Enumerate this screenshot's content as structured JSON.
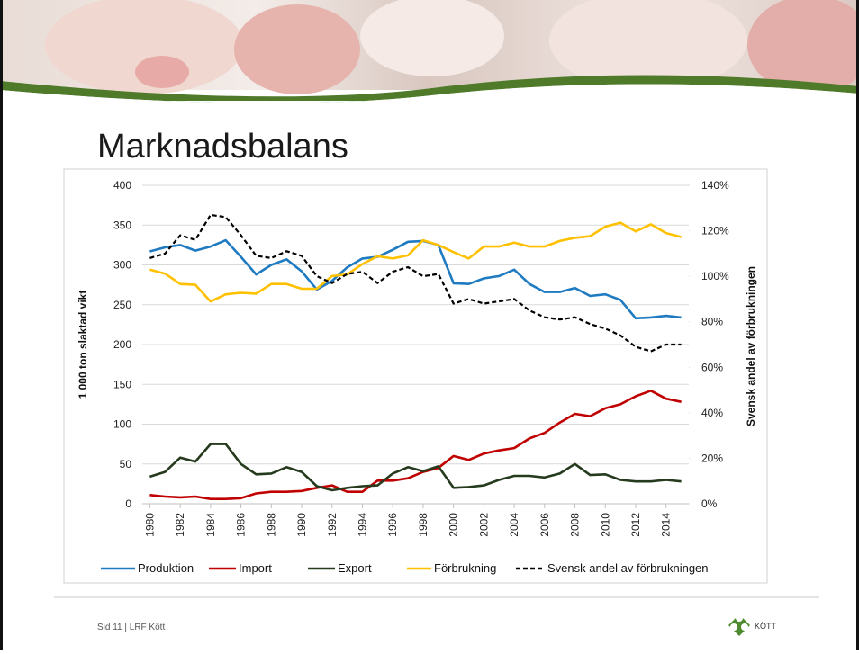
{
  "slide": {
    "title": "Marknadsbalans",
    "footer": "Sid 11 | LRF Kött",
    "logo_text": "KÖTT"
  },
  "chart_data": {
    "type": "line",
    "y_label": "1 000 ton slaktad vikt",
    "y2_label": "Svensk andel av förbrukningen",
    "x": [
      1980,
      1981,
      1982,
      1983,
      1984,
      1985,
      1986,
      1987,
      1988,
      1989,
      1990,
      1991,
      1992,
      1993,
      1994,
      1995,
      1996,
      1997,
      1998,
      1999,
      2000,
      2001,
      2002,
      2003,
      2004,
      2005,
      2006,
      2007,
      2008,
      2009,
      2010,
      2011,
      2012,
      2013,
      2014,
      2015
    ],
    "xlim": [
      1979.5,
      2015.5
    ],
    "xticks": [
      1980,
      1982,
      1984,
      1986,
      1988,
      1990,
      1992,
      1994,
      1996,
      1998,
      2000,
      2002,
      2004,
      2006,
      2008,
      2010,
      2012,
      2014
    ],
    "ylim": [
      0,
      400
    ],
    "yticks": [
      0,
      50,
      100,
      150,
      200,
      250,
      300,
      350,
      400
    ],
    "y2lim": [
      0,
      140
    ],
    "y2ticks": [
      {
        "value": 0,
        "label": "0%"
      },
      {
        "value": 20,
        "label": "20%"
      },
      {
        "value": 40,
        "label": "40%"
      },
      {
        "value": 60,
        "label": "60%"
      },
      {
        "value": 80,
        "label": "80%"
      },
      {
        "value": 100,
        "label": "100%"
      },
      {
        "value": 120,
        "label": "120%"
      },
      {
        "value": 140,
        "label": "140%"
      }
    ],
    "grid": true,
    "legend": "bottom",
    "series": [
      {
        "name": "Produktion",
        "color": "#1f7bc1",
        "values": [
          317,
          322,
          325,
          318,
          323,
          331,
          310,
          288,
          300,
          307,
          292,
          269,
          280,
          297,
          308,
          310,
          319,
          329,
          330,
          325,
          277,
          276,
          283,
          286,
          294,
          276,
          266,
          266,
          271,
          261,
          263,
          256,
          233,
          234,
          236,
          234
        ]
      },
      {
        "name": "Import",
        "color": "#c00000",
        "values": [
          11,
          9,
          8,
          9,
          6,
          6,
          7,
          13,
          15,
          15,
          16,
          20,
          23,
          15,
          15,
          29,
          29,
          32,
          40,
          45,
          60,
          55,
          63,
          67,
          70,
          82,
          89,
          102,
          113,
          110,
          120,
          125,
          135,
          142,
          132,
          128
        ]
      },
      {
        "name": "Export",
        "color": "#263a1e",
        "values": [
          34,
          40,
          58,
          53,
          75,
          75,
          50,
          37,
          38,
          46,
          40,
          22,
          17,
          20,
          22,
          23,
          38,
          46,
          41,
          47,
          20,
          21,
          23,
          30,
          35,
          35,
          33,
          38,
          50,
          36,
          37,
          30,
          28,
          28,
          30,
          28
        ]
      },
      {
        "name": "Förbrukning",
        "color": "#ffc000",
        "values": [
          294,
          289,
          276,
          275,
          254,
          263,
          265,
          264,
          276,
          276,
          270,
          270,
          286,
          288,
          301,
          311,
          308,
          312,
          331,
          325,
          316,
          308,
          323,
          323,
          328,
          323,
          323,
          330,
          334,
          336,
          348,
          353,
          342,
          351,
          340,
          335
        ]
      },
      {
        "name": "Svensk andel av förbrukningen",
        "color": "#000000",
        "dashed": true,
        "axis": "y2",
        "values": [
          108,
          110,
          118,
          116,
          127,
          126,
          118,
          109,
          108,
          111,
          109,
          100,
          97,
          101,
          102,
          97,
          102,
          104,
          100,
          101,
          88,
          90,
          88,
          89,
          90,
          85,
          82,
          81,
          82,
          79,
          77,
          74,
          69,
          67,
          70,
          70
        ]
      }
    ]
  }
}
